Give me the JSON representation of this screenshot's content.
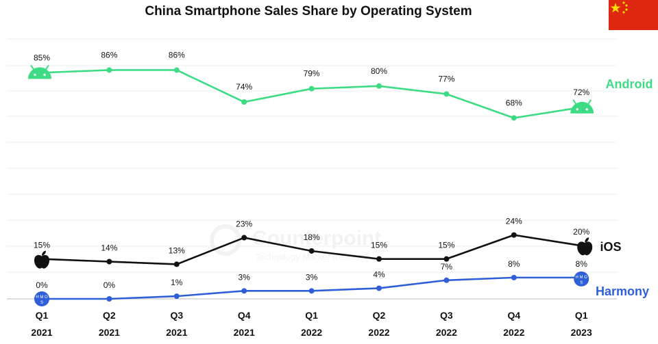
{
  "chart_data": {
    "type": "line",
    "title": "China Smartphone Sales Share by Operating System",
    "categories": [
      [
        "Q1",
        "2021"
      ],
      [
        "Q2",
        "2021"
      ],
      [
        "Q3",
        "2021"
      ],
      [
        "Q4",
        "2021"
      ],
      [
        "Q1",
        "2022"
      ],
      [
        "Q2",
        "2022"
      ],
      [
        "Q3",
        "2022"
      ],
      [
        "Q4",
        "2022"
      ],
      [
        "Q1",
        "2023"
      ]
    ],
    "series": [
      {
        "name": "Android",
        "color": "#3ddc84",
        "icon": "android-icon",
        "values": [
          85,
          86,
          86,
          74,
          79,
          80,
          77,
          68,
          72
        ],
        "labels": [
          "85%",
          "86%",
          "86%",
          "74%",
          "79%",
          "80%",
          "77%",
          "68%",
          "72%"
        ]
      },
      {
        "name": "iOS",
        "color": "#111111",
        "icon": "apple-icon",
        "values": [
          15,
          14,
          13,
          23,
          18,
          15,
          15,
          24,
          20
        ],
        "labels": [
          "15%",
          "14%",
          "13%",
          "23%",
          "18%",
          "15%",
          "15%",
          "24%",
          "20%"
        ]
      },
      {
        "name": "Harmony",
        "color": "#2f5fd8",
        "icon": "hmos-icon",
        "values": [
          0,
          0,
          1,
          3,
          3,
          4,
          7,
          8,
          8
        ],
        "labels": [
          "0%",
          "0%",
          "1%",
          "3%",
          "3%",
          "4%",
          "7%",
          "8%",
          "8%"
        ]
      }
    ],
    "ylim": [
      0,
      90
    ],
    "grid": true,
    "legend": "right-inline"
  },
  "watermark": {
    "brand": "Counterpoint",
    "sub": "Technology Market Research"
  },
  "hmos_icon_text": "H M O S",
  "flag": "china-flag-icon"
}
